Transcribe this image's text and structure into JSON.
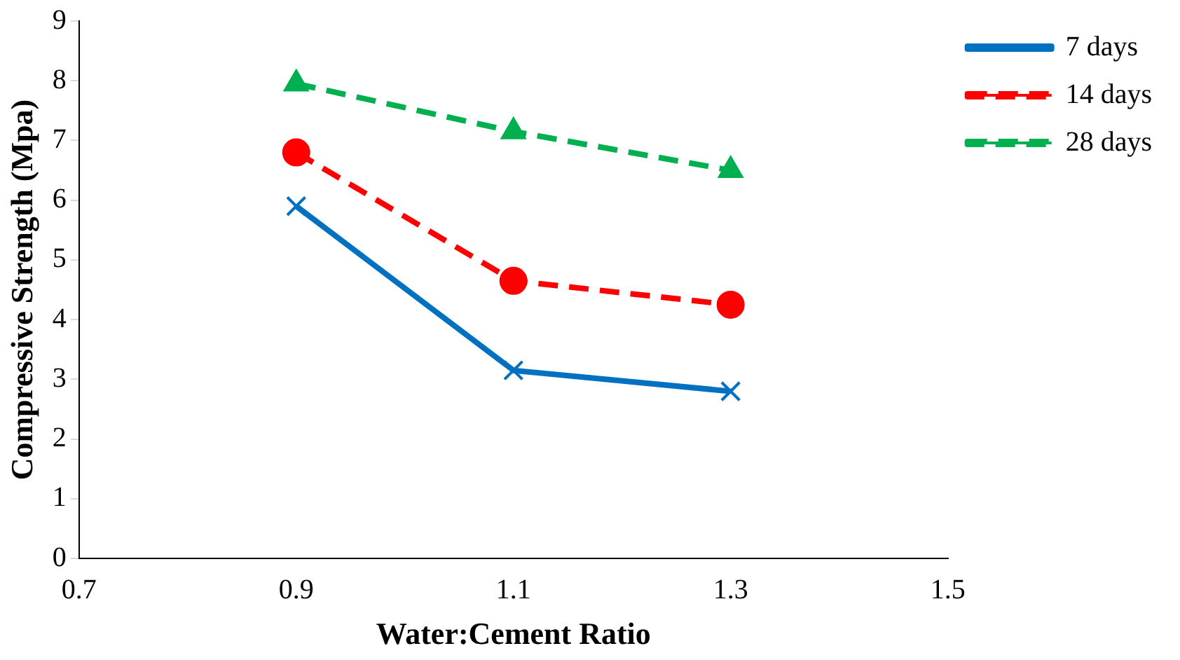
{
  "chart_data": {
    "type": "line",
    "xlabel": "Water:Cement Ratio",
    "ylabel": "Compressive Strength (Mpa)",
    "x": [
      0.9,
      1.1,
      1.3
    ],
    "series": [
      {
        "name": "7 days",
        "color": "#0070c0",
        "values": [
          5.9,
          3.15,
          2.8
        ],
        "marker": "cross",
        "line_style": "solid"
      },
      {
        "name": "14 days",
        "color": "#ff0000",
        "values": [
          6.8,
          4.65,
          4.25
        ],
        "marker": "circle",
        "line_style": "dashed"
      },
      {
        "name": "28 days",
        "color": "#00b050",
        "values": [
          7.95,
          7.15,
          6.5
        ],
        "marker": "triangle",
        "line_style": "dashed"
      }
    ],
    "xlim": [
      0.7,
      1.5
    ],
    "xticks": [
      0.7,
      0.9,
      1.1,
      1.3,
      1.5
    ],
    "ylim": [
      0,
      9
    ],
    "yticks": [
      0,
      1,
      2,
      3,
      4,
      5,
      6,
      7,
      8,
      9
    ],
    "grid": false,
    "legend": "right"
  }
}
